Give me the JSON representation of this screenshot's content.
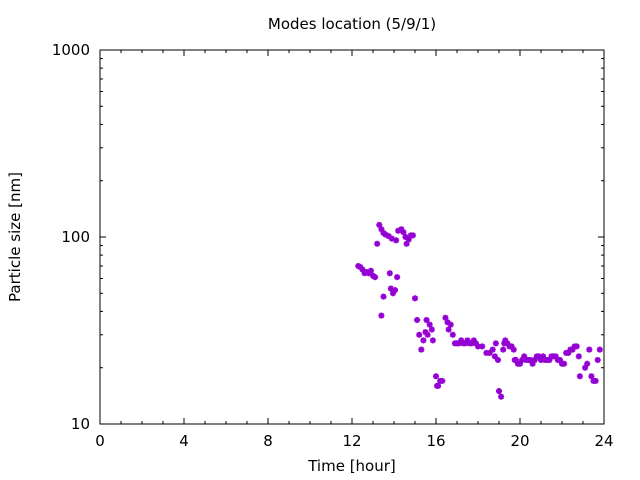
{
  "chart_data": {
    "type": "scatter",
    "title": "Modes location (5/9/1)",
    "xlabel": "Time [hour]",
    "ylabel": "Particle size [nm]",
    "xlim": [
      0,
      24
    ],
    "ylim": [
      10,
      1000
    ],
    "yscale": "log",
    "grid": false,
    "legend": "none",
    "x_ticks": [
      "0",
      "4",
      "8",
      "12",
      "16",
      "20",
      "24"
    ],
    "y_ticks": [
      "10",
      "100",
      "1000"
    ],
    "marker_color": "#9400d3",
    "series": [
      {
        "points": [
          [
            12.3,
            70
          ],
          [
            12.4,
            69
          ],
          [
            12.5,
            67
          ],
          [
            12.6,
            64
          ],
          [
            12.7,
            65
          ],
          [
            12.8,
            64
          ],
          [
            12.9,
            66
          ],
          [
            13.0,
            62
          ],
          [
            13.1,
            61
          ],
          [
            13.2,
            92
          ],
          [
            13.3,
            116
          ],
          [
            13.4,
            110
          ],
          [
            13.5,
            105
          ],
          [
            13.6,
            103
          ],
          [
            13.75,
            101
          ],
          [
            13.9,
            98
          ],
          [
            14.1,
            96
          ],
          [
            14.2,
            108
          ],
          [
            14.35,
            110
          ],
          [
            14.45,
            106
          ],
          [
            14.55,
            100
          ],
          [
            14.6,
            92
          ],
          [
            14.7,
            97
          ],
          [
            14.8,
            102
          ],
          [
            14.9,
            102
          ],
          [
            13.4,
            38
          ],
          [
            13.5,
            48
          ],
          [
            13.8,
            64
          ],
          [
            13.85,
            53
          ],
          [
            13.95,
            50
          ],
          [
            14.05,
            52
          ],
          [
            14.15,
            61
          ],
          [
            15.0,
            47
          ],
          [
            15.1,
            36
          ],
          [
            15.2,
            30
          ],
          [
            15.3,
            25
          ],
          [
            15.4,
            28
          ],
          [
            15.5,
            31
          ],
          [
            15.55,
            36
          ],
          [
            15.6,
            30
          ],
          [
            15.7,
            34
          ],
          [
            15.8,
            32
          ],
          [
            15.85,
            28
          ],
          [
            16.0,
            18
          ],
          [
            16.05,
            16
          ],
          [
            16.1,
            16
          ],
          [
            16.2,
            17
          ],
          [
            16.3,
            17
          ],
          [
            16.45,
            37
          ],
          [
            16.55,
            35
          ],
          [
            16.6,
            32
          ],
          [
            16.7,
            34
          ],
          [
            16.8,
            30
          ],
          [
            16.9,
            27
          ],
          [
            17.0,
            27
          ],
          [
            17.1,
            27
          ],
          [
            17.2,
            28
          ],
          [
            17.3,
            27
          ],
          [
            17.4,
            27
          ],
          [
            17.5,
            28
          ],
          [
            17.6,
            27
          ],
          [
            17.7,
            27
          ],
          [
            17.8,
            28
          ],
          [
            17.9,
            27
          ],
          [
            18.0,
            26
          ],
          [
            18.2,
            26
          ],
          [
            18.4,
            24
          ],
          [
            18.55,
            24
          ],
          [
            18.7,
            25
          ],
          [
            18.8,
            23
          ],
          [
            18.85,
            27
          ],
          [
            18.95,
            22
          ],
          [
            19.0,
            15
          ],
          [
            19.1,
            14
          ],
          [
            19.2,
            25
          ],
          [
            19.25,
            27
          ],
          [
            19.3,
            28
          ],
          [
            19.4,
            27
          ],
          [
            19.5,
            26
          ],
          [
            19.6,
            26
          ],
          [
            19.7,
            25
          ],
          [
            19.75,
            22
          ],
          [
            19.8,
            22
          ],
          [
            19.9,
            21
          ],
          [
            20.0,
            21
          ],
          [
            20.1,
            22
          ],
          [
            20.2,
            23
          ],
          [
            20.3,
            22
          ],
          [
            20.4,
            22
          ],
          [
            20.5,
            22
          ],
          [
            20.6,
            21
          ],
          [
            20.7,
            22
          ],
          [
            20.8,
            23
          ],
          [
            20.9,
            23
          ],
          [
            21.0,
            22
          ],
          [
            21.1,
            23
          ],
          [
            21.2,
            22
          ],
          [
            21.3,
            22
          ],
          [
            21.4,
            22
          ],
          [
            21.5,
            23
          ],
          [
            21.6,
            23
          ],
          [
            21.7,
            23
          ],
          [
            21.8,
            22
          ],
          [
            21.9,
            22
          ],
          [
            22.0,
            21
          ],
          [
            22.1,
            21
          ],
          [
            22.2,
            24
          ],
          [
            22.3,
            24
          ],
          [
            22.4,
            25
          ],
          [
            22.5,
            25
          ],
          [
            22.6,
            26
          ],
          [
            22.7,
            26
          ],
          [
            22.8,
            23
          ],
          [
            22.85,
            18
          ],
          [
            23.1,
            20
          ],
          [
            23.2,
            21
          ],
          [
            23.3,
            25
          ],
          [
            23.4,
            18
          ],
          [
            23.5,
            17
          ],
          [
            23.6,
            17
          ],
          [
            23.7,
            22
          ],
          [
            23.8,
            25
          ]
        ]
      }
    ]
  }
}
